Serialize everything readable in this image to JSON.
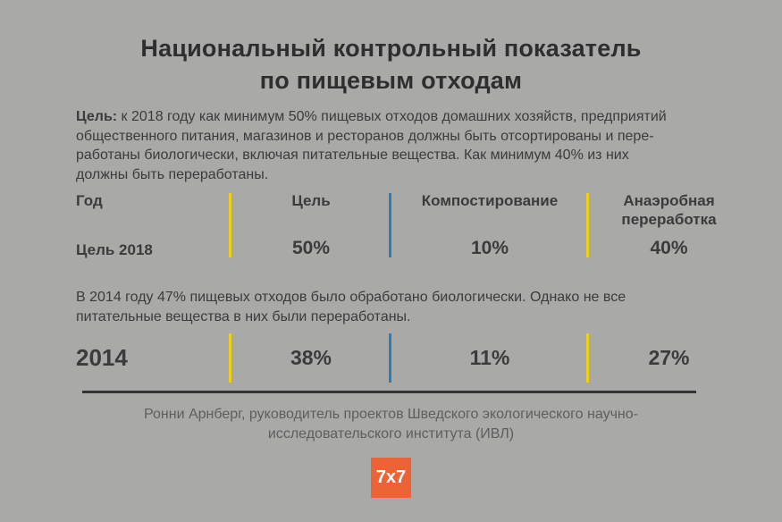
{
  "colors": {
    "background": "#a9a9a7",
    "title_text": "#2e2e2e",
    "body_text": "#3b3b3b",
    "source_text": "#5e5e5e",
    "divider_yellow": "#f1d013",
    "divider_blue": "#2e7db5",
    "rule_dark": "#333333",
    "logo_orange": "#ec6436",
    "logo_text": "#ffffff"
  },
  "title": {
    "line1": "Национальный контрольный показатель",
    "line2": "по пищевым отходам"
  },
  "intro": {
    "label": "Цель:",
    "line1_rest": " к 2018 году как минимум 50% пищевых отходов домашних хозяйств, предприятий",
    "line2": "общественного питания, магазинов и ресторанов должны быть отсортированы и пере-",
    "line3": "работаны биологически, включая питательные вещества. Как минимум 40% из них",
    "line4": "должны быть переработаны."
  },
  "target_table": {
    "headers": {
      "year": "Год",
      "goal": "Цель",
      "composting": "Компостирование",
      "anaerobic": "Анаэробная переработка"
    },
    "row": {
      "year": "Цель 2018",
      "goal": "50%",
      "composting": "10%",
      "anaerobic": "40%"
    }
  },
  "note_2014": {
    "line1": "В 2014 году 47% пищевых отходов было обработано биологически. Однако не все",
    "line2": "питательные вещества в них были переработаны."
  },
  "actual_row": {
    "year": "2014",
    "goal": "38%",
    "composting": "11%",
    "anaerobic": "27%"
  },
  "source": {
    "line1": "Ронни Арнберг, руководитель проектов Шведского экологического научно-",
    "line2": "исследовательского института (ИВЛ)"
  },
  "logo": {
    "text": "7x7"
  },
  "chart_data": {
    "type": "table",
    "title": "Национальный контрольный показатель по пищевым отходам",
    "columns": [
      "Год",
      "Цель",
      "Компостирование",
      "Анаэробная переработка"
    ],
    "rows": [
      [
        "Цель 2018",
        "50%",
        "10%",
        "40%"
      ],
      [
        "2014",
        "38%",
        "11%",
        "27%"
      ]
    ],
    "annotations": [
      "Цель: к 2018 году как минимум 50% пищевых отходов домашних хозяйств, предприятий общественного питания, магазинов и ресторанов должны быть отсортированы и переработаны биологически, включая питательные вещества. Как минимум 40% из них должны быть переработаны.",
      "В 2014 году 47% пищевых отходов было обработано биологически. Однако не все питательные вещества в них были переработаны.",
      "Ронни Арнберг, руководитель проектов Шведского экологического научно-исследовательского института (ИВЛ)"
    ]
  }
}
